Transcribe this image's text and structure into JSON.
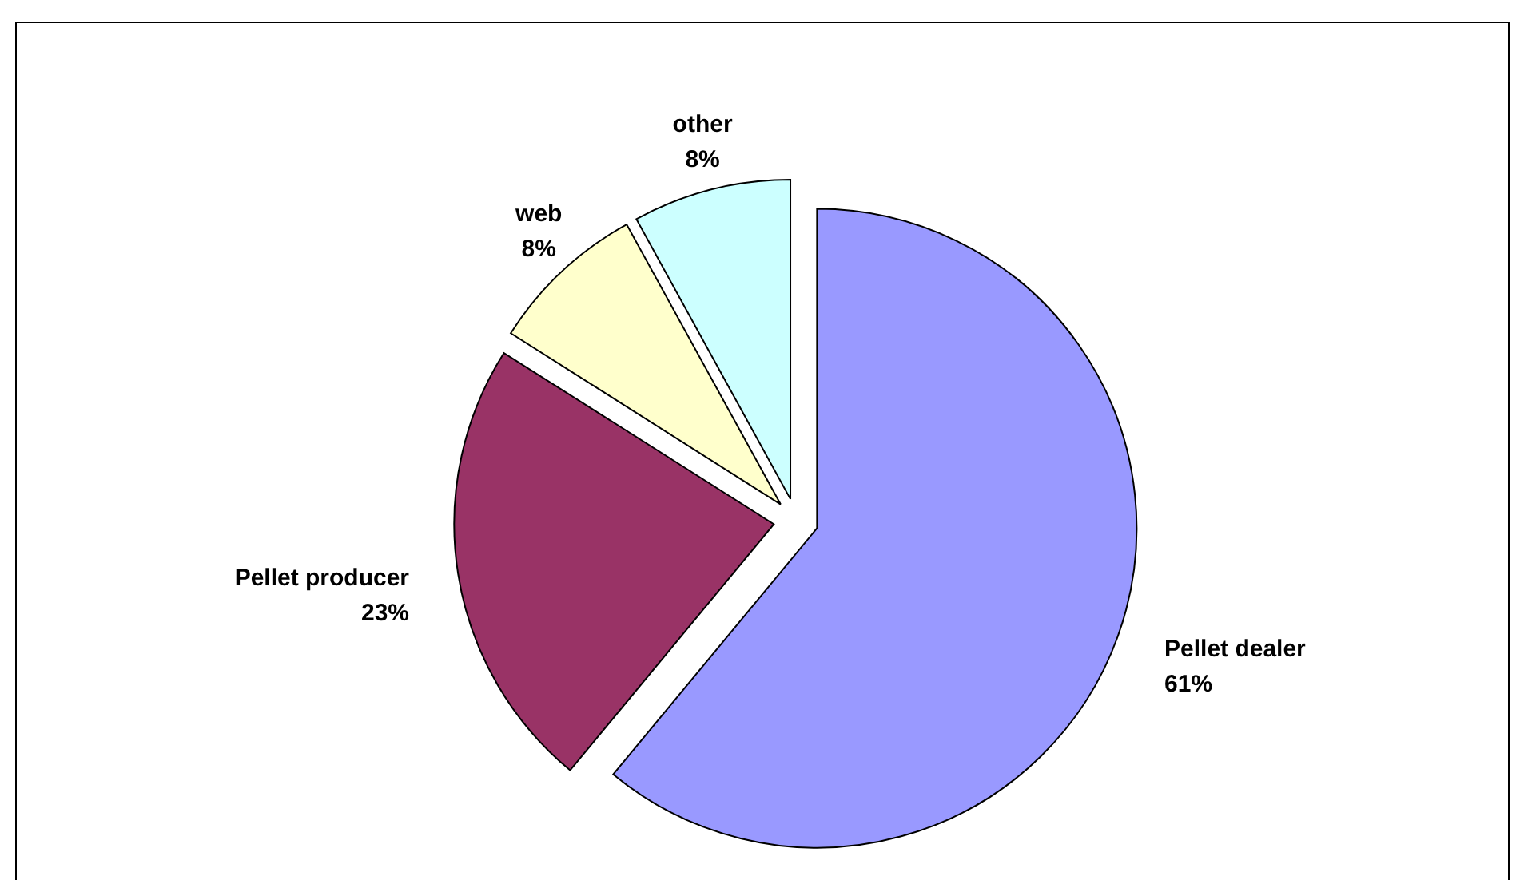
{
  "chart_data": {
    "type": "pie",
    "categories": [
      "Pellet dealer",
      "Pellet producer",
      "web",
      "other"
    ],
    "values": [
      61,
      23,
      8,
      8
    ],
    "colors": [
      "#9999ff",
      "#993366",
      "#ffffcc",
      "#ccffff"
    ],
    "value_labels": [
      "61%",
      "23%",
      "8%",
      "8%"
    ]
  }
}
